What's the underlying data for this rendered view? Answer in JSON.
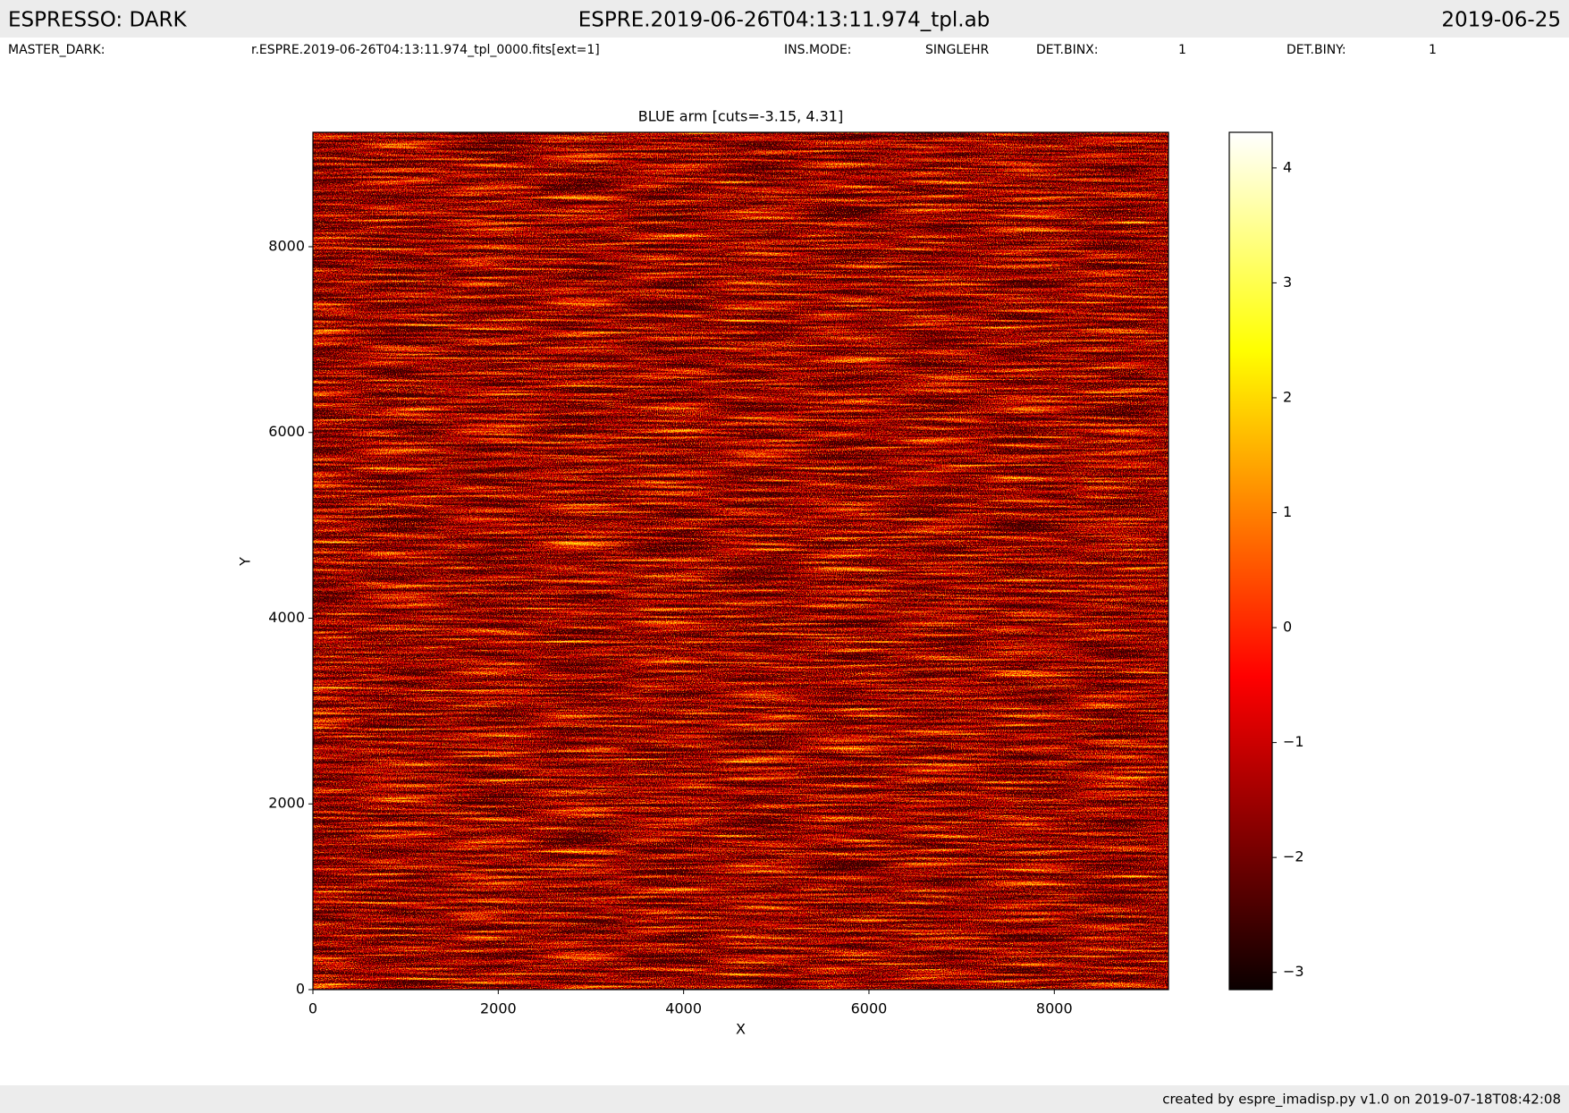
{
  "header": {
    "title": "ESPRESSO: DARK",
    "file": "ESPRE.2019-06-26T04:13:11.974_tpl.ab",
    "date": "2019-06-25",
    "meta": [
      {
        "key": "MASTER_DARK:",
        "value": "r.ESPRE.2019-06-26T04:13:11.974_tpl_0000.fits[ext=1]"
      },
      {
        "key": "INS.MODE:",
        "value": "SINGLEHR"
      },
      {
        "key": "DET.BINX:",
        "value": 1
      },
      {
        "key": "DET.BINY:",
        "value": 1
      }
    ]
  },
  "chart_data": {
    "type": "heatmap",
    "title": "BLUE arm [cuts=-3.15, 4.31]",
    "xlabel": "X",
    "ylabel": "Y",
    "xlim": [
      0,
      9232
    ],
    "ylim": [
      0,
      9232
    ],
    "xticks": [
      0,
      2000,
      4000,
      6000,
      8000
    ],
    "yticks": [
      0,
      2000,
      4000,
      6000,
      8000
    ],
    "colormap": "hot",
    "colorbar": {
      "lim": [
        -3.15,
        4.31
      ],
      "ticks": [
        {
          "value": -3,
          "label": "−3"
        },
        {
          "value": -2,
          "label": "−2"
        },
        {
          "value": -1,
          "label": "−1"
        },
        0,
        1,
        2,
        3,
        4
      ]
    }
  },
  "footer": {
    "text": "created by espre_imadisp.py v1.0 on 2019-07-18T08:42:08"
  }
}
